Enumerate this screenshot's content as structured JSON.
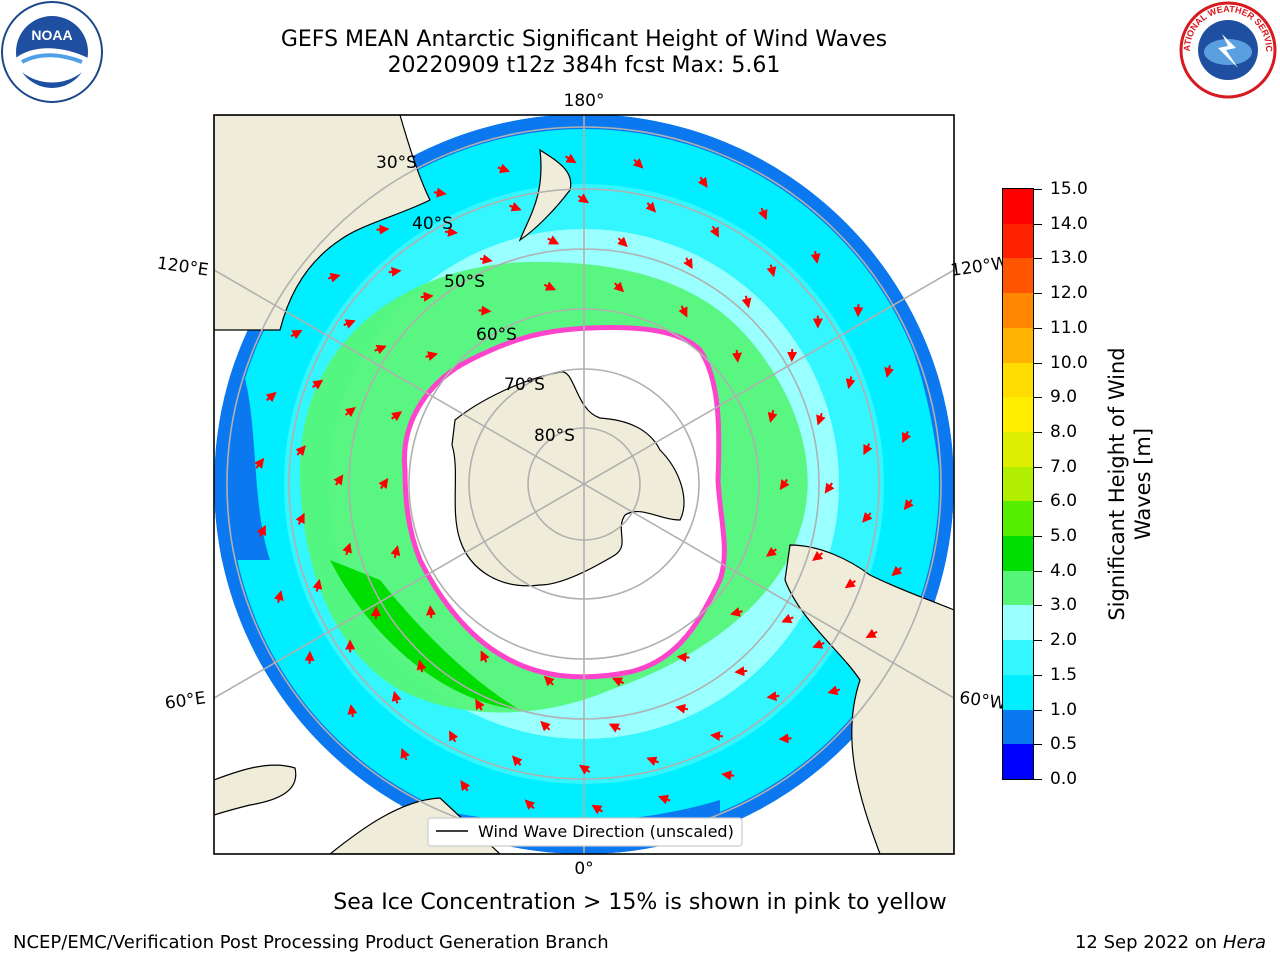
{
  "title": {
    "line1": "GEFS MEAN Antarctic Significant Height of Wind Waves",
    "line2": "20220909 t12z 384h fcst   Max: 5.61"
  },
  "map": {
    "projection": "south-polar-stereographic",
    "longitude_labels": [
      "180°",
      "120°E",
      "120°W",
      "60°E",
      "60°W",
      "0°"
    ],
    "latitude_labels": [
      "30°S",
      "40°S",
      "50°S",
      "60°S",
      "70°S",
      "80°S"
    ],
    "legend_label": "Wind Wave Direction (unscaled)",
    "colors": {
      "land": "#efedda",
      "sea_ice": "#ffffff",
      "ice_edge": "#ff44cc",
      "grid": "#b0b0b0",
      "arrow": "#ff0000"
    }
  },
  "colorbar": {
    "title": "Significant Height of Wind Waves [m]",
    "ticks": [
      "0.0",
      "0.5",
      "1.0",
      "1.5",
      "2.0",
      "3.0",
      "4.0",
      "5.0",
      "6.0",
      "7.0",
      "8.0",
      "9.0",
      "10.0",
      "11.0",
      "12.0",
      "13.0",
      "14.0",
      "15.0"
    ],
    "colors": [
      "#0000ff",
      "#0c78f0",
      "#00eeff",
      "#33f6ff",
      "#99ffff",
      "#55f57a",
      "#00dd00",
      "#55ee00",
      "#b2ee00",
      "#ddee00",
      "#ffee00",
      "#ffdd00",
      "#ffb300",
      "#ff8800",
      "#ff5500",
      "#ff2200",
      "#ff0000"
    ]
  },
  "note": "Sea Ice Concentration > 15% is shown in pink to yellow",
  "footer": {
    "left": "NCEP/EMC/Verification Post Processing Product Generation Branch",
    "date": "12 Sep 2022 on",
    "host": "Hera"
  },
  "logos": {
    "left": "NOAA",
    "right": "NATIONAL WEATHER SERVICE"
  }
}
